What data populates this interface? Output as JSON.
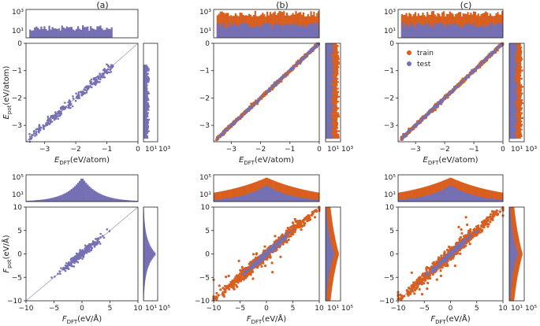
{
  "colors": {
    "train": "#d95f1e",
    "test": "#7570b3",
    "frame": "#222222",
    "diag": "#9a9ac8"
  },
  "figure": {
    "panel_labels": [
      "(a)",
      "(b)",
      "(c)"
    ]
  },
  "legend": {
    "train": "train",
    "test": "test"
  },
  "energy": {
    "xlabel": {
      "main": "E",
      "sub": "DFT",
      "unit": "(eV/atom)"
    },
    "ylabel": {
      "main": "E",
      "sub": "pot",
      "unit": "(eV/atom)"
    },
    "xlim": [
      -3.6,
      0
    ],
    "ylim": [
      -3.6,
      0
    ],
    "xticks": [
      -3,
      -2,
      -1,
      0
    ],
    "xtick_labels": [
      "−3",
      "−2",
      "−1",
      "0"
    ],
    "yticks": [
      -3,
      -2,
      -1,
      0
    ],
    "ytick_labels": [
      "−3",
      "−2",
      "−1",
      "0"
    ],
    "hist_ticks": [
      "10",
      "3"
    ],
    "hist_tick_labels_top": [
      "10³",
      "10¹"
    ],
    "hist_tick_labels_right": [
      "10¹",
      "10³"
    ]
  },
  "force": {
    "xlabel": {
      "main": "F",
      "sub": "DFT",
      "unit": "(eV/Å)"
    },
    "ylabel": {
      "main": "F",
      "sub": "pot",
      "unit": "(eV/Å)"
    },
    "xlim": [
      -10,
      10
    ],
    "ylim": [
      -10,
      10
    ],
    "xticks": [
      -10,
      -5,
      0,
      5,
      10
    ],
    "xtick_labels": [
      "−10",
      "−5",
      "0",
      "5",
      "10"
    ],
    "yticks": [
      -10,
      -5,
      0,
      5,
      10
    ],
    "ytick_labels": [
      "−10",
      "−5",
      "0",
      "5",
      "10"
    ],
    "hist_tick_labels_top": [
      "10⁵",
      "10¹"
    ],
    "hist_tick_labels_right": [
      "10¹",
      "10⁵"
    ]
  },
  "chart_data": [
    {
      "id": "a-energy",
      "type": "scatter",
      "title": "(a)",
      "series": [
        {
          "name": "test",
          "spread": 0.08
        }
      ],
      "xlim": [
        -3.6,
        0
      ],
      "ylim": [
        -3.6,
        0
      ],
      "xrange_data": [
        -3.5,
        -0.8
      ]
    },
    {
      "id": "b-energy",
      "type": "scatter",
      "title": "(b)",
      "series": [
        {
          "name": "train",
          "spread": 0.03
        },
        {
          "name": "test",
          "spread": 0.03
        }
      ],
      "xlim": [
        -3.6,
        0
      ],
      "ylim": [
        -3.6,
        0
      ],
      "xrange_data": [
        -3.5,
        0
      ]
    },
    {
      "id": "c-energy",
      "type": "scatter",
      "title": "(c)",
      "series": [
        {
          "name": "train",
          "spread": 0.03
        },
        {
          "name": "test",
          "spread": 0.03
        }
      ],
      "xlim": [
        -3.6,
        0
      ],
      "ylim": [
        -3.6,
        0
      ],
      "xrange_data": [
        -3.5,
        0
      ],
      "legend": [
        "train",
        "test"
      ]
    },
    {
      "id": "a-force",
      "type": "scatter",
      "series": [
        {
          "name": "test",
          "spread": 0.45
        }
      ],
      "xlim": [
        -10,
        10
      ],
      "ylim": [
        -10,
        10
      ],
      "xrange_data": [
        -7,
        7
      ]
    },
    {
      "id": "b-force",
      "type": "scatter",
      "series": [
        {
          "name": "train",
          "spread": 0.6
        },
        {
          "name": "test",
          "spread": 0.3
        }
      ],
      "xlim": [
        -10,
        10
      ],
      "ylim": [
        -10,
        10
      ],
      "xrange_data": [
        -10,
        10
      ]
    },
    {
      "id": "c-force",
      "type": "scatter",
      "series": [
        {
          "name": "train",
          "spread": 0.6
        },
        {
          "name": "test",
          "spread": 0.3
        }
      ],
      "xlim": [
        -10,
        10
      ],
      "ylim": [
        -10,
        10
      ],
      "xrange_data": [
        -10,
        10
      ]
    }
  ]
}
